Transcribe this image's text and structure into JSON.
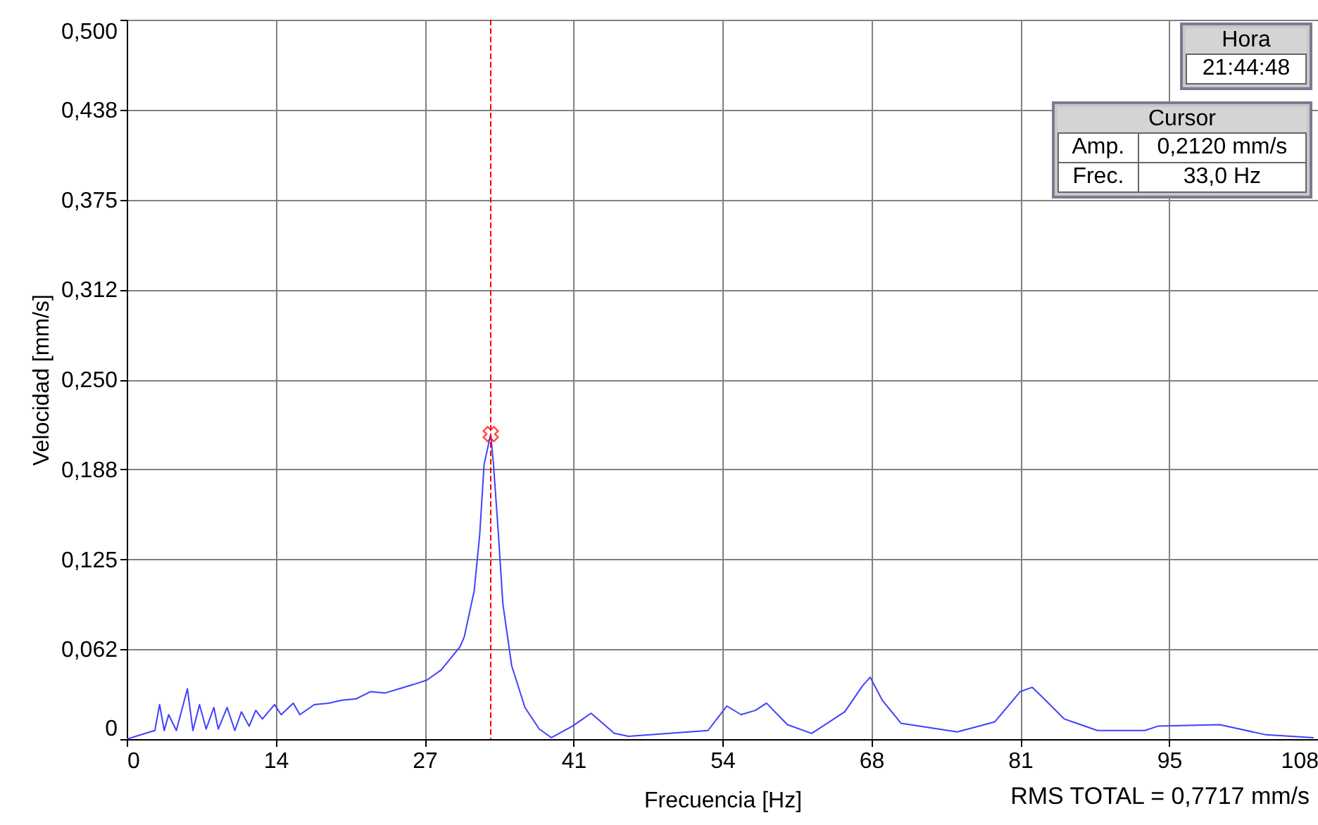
{
  "chart_data": {
    "type": "line",
    "xlabel": "Frecuencia [Hz]",
    "ylabel": "Velocidad [mm/s]",
    "xlim": [
      0,
      108
    ],
    "xticks": [
      0,
      {
        "value": 13.5,
        "label": "14"
      },
      27,
      {
        "value": 40.5,
        "label": "41"
      },
      54,
      {
        "value": 67.5,
        "label": "68"
      },
      81,
      {
        "value": 94.5,
        "label": "95"
      },
      108
    ],
    "ylim": [
      0,
      0.5
    ],
    "yticks": [
      {
        "value": 0,
        "label": "0"
      },
      {
        "value": 0.0625,
        "label": "0,062"
      },
      {
        "value": 0.125,
        "label": "0,125"
      },
      {
        "value": 0.1875,
        "label": "0,188"
      },
      {
        "value": 0.25,
        "label": "0,250"
      },
      {
        "value": 0.3125,
        "label": "0,312"
      },
      {
        "value": 0.375,
        "label": "0,375"
      },
      {
        "value": 0.4375,
        "label": "0,438"
      },
      {
        "value": 0.5,
        "label": "0,500"
      }
    ],
    "grid": true,
    "series": [
      {
        "color": "#4040ff",
        "x": [
          0,
          1.7,
          2.55,
          2.98,
          3.4,
          3.8,
          4.5,
          5.5,
          6.0,
          6.6,
          7.2,
          7.9,
          8.3,
          9.1,
          9.8,
          10.4,
          11.1,
          11.7,
          12.3,
          13.4,
          14.0,
          15.1,
          15.7,
          17.0,
          18.3,
          19.5,
          20.8,
          22.1,
          23.4,
          24.7,
          26.0,
          27.2,
          28.5,
          30.2,
          30.6,
          31.5,
          32.0,
          32.4,
          33.0,
          33.25,
          33.7,
          34.1,
          34.9,
          36.1,
          37.4,
          38.5,
          40.4,
          42.1,
          44.2,
          45.5,
          52.7,
          54.4,
          55.7,
          57.0,
          58.0,
          59.9,
          62.1,
          65.1,
          66.7,
          67.4,
          68.5,
          70.2,
          75.3,
          78.7,
          81.0,
          82.1,
          83.3,
          85.0,
          88.0,
          92.3,
          93.5,
          99.1,
          103.3,
          107.6
        ],
        "values": [
          0,
          0.004,
          0.006,
          0.024,
          0.006,
          0.017,
          0.006,
          0.035,
          0.006,
          0.024,
          0.007,
          0.022,
          0.007,
          0.022,
          0.006,
          0.019,
          0.009,
          0.02,
          0.014,
          0.024,
          0.017,
          0.025,
          0.017,
          0.024,
          0.025,
          0.027,
          0.028,
          0.033,
          0.032,
          0.035,
          0.038,
          0.041,
          0.048,
          0.064,
          0.071,
          0.103,
          0.142,
          0.191,
          0.212,
          0.191,
          0.142,
          0.094,
          0.051,
          0.022,
          0.007,
          0.001,
          0.009,
          0.018,
          0.004,
          0.002,
          0.006,
          0.023,
          0.017,
          0.02,
          0.025,
          0.01,
          0.004,
          0.019,
          0.037,
          0.043,
          0.027,
          0.011,
          0.005,
          0.012,
          0.033,
          0.036,
          0.027,
          0.014,
          0.006,
          0.006,
          0.009,
          0.01,
          0.003,
          0.001
        ]
      },
      {
        "type": "scatter",
        "color": "#ff0000",
        "marker": "cross",
        "x": [
          33
        ],
        "values": [
          0.212
        ]
      }
    ],
    "ref_lines": [
      {
        "axis": "x",
        "value": 33,
        "color": "#ff0000",
        "line_style": "dashed"
      }
    ],
    "annotations": [
      "Hora",
      "21:44:48",
      "Cursor",
      "Amp.",
      "0,2120 mm/s",
      "Frec.",
      "33,0 Hz",
      "RMS TOTAL = 0,7717 mm/s"
    ]
  }
}
